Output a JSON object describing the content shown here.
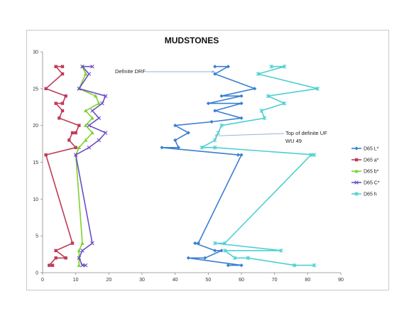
{
  "chart_data": {
    "type": "scatter",
    "title": "MUDSTONES",
    "xlim": [
      0,
      90
    ],
    "ylim": [
      0,
      30
    ],
    "x_ticks": [
      "0",
      "10",
      "20",
      "30",
      "40",
      "50",
      "60",
      "70",
      "80",
      "90"
    ],
    "y_ticks": [
      "0",
      "5",
      "10",
      "15",
      "20",
      "25",
      "30"
    ],
    "grid": false,
    "legend_position": "right",
    "series": [
      {
        "name": "D65 L*",
        "color": "#3a7fd0",
        "marker": "diamond",
        "points": [
          [
            52,
            28
          ],
          [
            56,
            28
          ],
          [
            52,
            27
          ],
          [
            64,
            25
          ],
          [
            54,
            24
          ],
          [
            60,
            24
          ],
          [
            50,
            23
          ],
          [
            60,
            23
          ],
          [
            52,
            22
          ],
          [
            60,
            21
          ],
          [
            51,
            20.5
          ],
          [
            40,
            20
          ],
          [
            44,
            19
          ],
          [
            40,
            18
          ],
          [
            41,
            17
          ],
          [
            36,
            17
          ],
          [
            59,
            16
          ],
          [
            60,
            16
          ],
          [
            47,
            4
          ],
          [
            46,
            4
          ],
          [
            52,
            3
          ],
          [
            54,
            3
          ],
          [
            49,
            2
          ],
          [
            44,
            2
          ],
          [
            60,
            1
          ],
          [
            56,
            1
          ]
        ]
      },
      {
        "name": "D65 a*",
        "color": "#be3c58",
        "marker": "square",
        "points": [
          [
            6,
            28
          ],
          [
            4,
            28
          ],
          [
            6,
            27
          ],
          [
            1,
            25
          ],
          [
            7,
            24
          ],
          [
            6,
            23
          ],
          [
            4,
            23
          ],
          [
            6,
            22
          ],
          [
            5,
            21
          ],
          [
            11,
            20
          ],
          [
            10,
            19
          ],
          [
            9,
            19
          ],
          [
            8,
            18
          ],
          [
            10,
            17
          ],
          [
            1,
            16
          ],
          [
            9,
            4
          ],
          [
            4,
            3
          ],
          [
            7,
            2
          ],
          [
            4,
            2
          ],
          [
            2,
            1
          ],
          [
            3,
            1
          ]
        ]
      },
      {
        "name": "D65 b*",
        "color": "#7fd12f",
        "marker": "triangle",
        "points": [
          [
            12,
            28
          ],
          [
            13,
            27
          ],
          [
            11,
            25
          ],
          [
            16,
            24
          ],
          [
            17,
            23
          ],
          [
            13,
            22
          ],
          [
            15,
            21
          ],
          [
            13,
            20
          ],
          [
            15,
            19
          ],
          [
            13,
            18
          ],
          [
            11,
            17
          ],
          [
            10,
            16
          ],
          [
            12,
            4
          ],
          [
            11,
            3
          ],
          [
            11,
            2
          ],
          [
            11,
            1
          ]
        ]
      },
      {
        "name": "D65 C*",
        "color": "#6a4cc8",
        "marker": "x",
        "points": [
          [
            15,
            28
          ],
          [
            12,
            28
          ],
          [
            14,
            27
          ],
          [
            11,
            25
          ],
          [
            19,
            24
          ],
          [
            18,
            23
          ],
          [
            15,
            22
          ],
          [
            17,
            21
          ],
          [
            14,
            20
          ],
          [
            19,
            19
          ],
          [
            17,
            18
          ],
          [
            14,
            17
          ],
          [
            10,
            16
          ],
          [
            15,
            4
          ],
          [
            12,
            3
          ],
          [
            11,
            2
          ],
          [
            12,
            1
          ],
          [
            13,
            1
          ]
        ]
      },
      {
        "name": "D65 h",
        "color": "#4fcfd0",
        "marker": "star",
        "points": [
          [
            69,
            28
          ],
          [
            73,
            28
          ],
          [
            65,
            27
          ],
          [
            83,
            25
          ],
          [
            68,
            24
          ],
          [
            73,
            23
          ],
          [
            66,
            22
          ],
          [
            67,
            21
          ],
          [
            54,
            20
          ],
          [
            53,
            19
          ],
          [
            52,
            18
          ],
          [
            48,
            17
          ],
          [
            52,
            17
          ],
          [
            82,
            16
          ],
          [
            81,
            16
          ],
          [
            55,
            4
          ],
          [
            52,
            4
          ],
          [
            72,
            3
          ],
          [
            55,
            3
          ],
          [
            58,
            2
          ],
          [
            62,
            2
          ],
          [
            76,
            1
          ],
          [
            82,
            1
          ]
        ]
      }
    ],
    "annotations": [
      {
        "id": "drf",
        "lines": [
          "Definite  DRF"
        ],
        "target": [
          52,
          27.3
        ]
      },
      {
        "id": "uf",
        "lines": [
          "Top of definite UF",
          "WU 49"
        ],
        "target": [
          53,
          18.6
        ]
      }
    ]
  }
}
